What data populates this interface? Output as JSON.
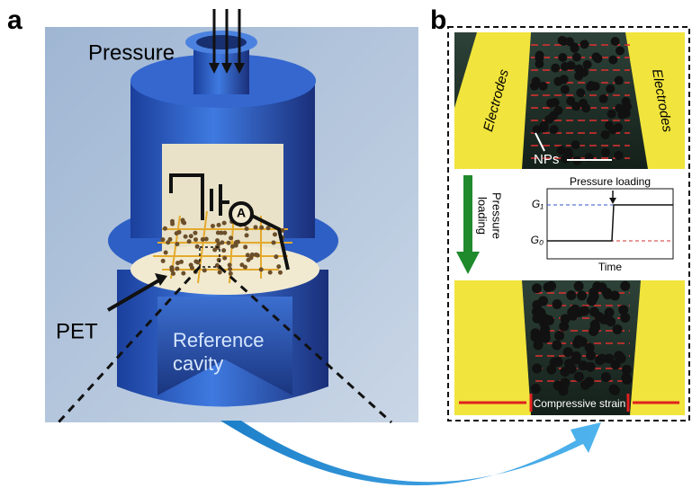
{
  "labels": {
    "a": "a",
    "b": "b"
  },
  "panel_a": {
    "pressure": "Pressure",
    "pet": "PET",
    "cavity": [
      "Reference",
      "cavity"
    ]
  },
  "panel_b": {
    "electrodes_left": "Electrodes",
    "electrodes_right": "Electrodes",
    "nps": "NPs",
    "arrow_label": [
      "Pressure",
      "loading"
    ],
    "plot": {
      "title": "Pressure loading",
      "g1": "G₁",
      "g0": "G₀",
      "x_label": "Time"
    },
    "strain": "Compressive strain"
  }
}
